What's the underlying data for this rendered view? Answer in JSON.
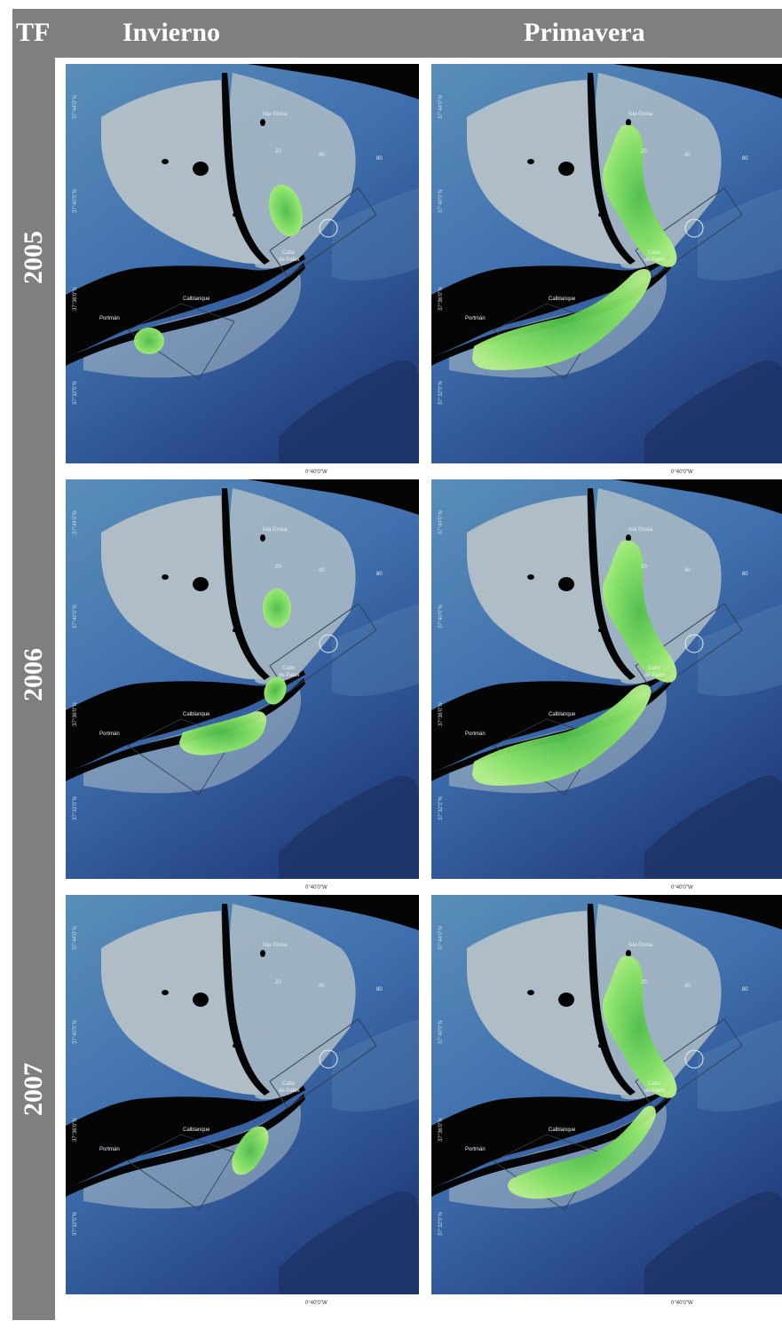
{
  "header": {
    "tf": "TF",
    "col1": "Invierno",
    "col2": "Primavera"
  },
  "years": [
    "2005",
    "2006",
    "2007"
  ],
  "map_labels": {
    "isla": "Isla Grosa",
    "cabo": "Cabo",
    "depalos": "de Palos",
    "calblanque": "Calblanque",
    "portman": "Portmán",
    "d20": "20",
    "d40": "40",
    "d80": "80",
    "lat1": "37°44'0\"N",
    "lat2": "37°40'0\"N",
    "lat3": "37°36'0\"N",
    "lat4": "37°32'0\"N",
    "lon": "0°40'0\"W"
  },
  "colors": {
    "header_bg": "#7f7f7f",
    "land": "#050505",
    "shelf": "#aebdc6",
    "sea": "#3f6fae",
    "deep": "#1c2c5a",
    "seagrass": "#8fe66a"
  },
  "panels": [
    {
      "year": "2005",
      "season": "Invierno",
      "patches": [
        "north-small",
        "portman-small"
      ]
    },
    {
      "year": "2005",
      "season": "Primavera",
      "patches": [
        "north-long",
        "south-band"
      ]
    },
    {
      "year": "2006",
      "season": "Invierno",
      "patches": [
        "north-oval",
        "cabo-small",
        "calblanque-band"
      ]
    },
    {
      "year": "2006",
      "season": "Primavera",
      "patches": [
        "north-long",
        "south-band"
      ]
    },
    {
      "year": "2007",
      "season": "Invierno",
      "patches": [
        "calblanque-blob"
      ]
    },
    {
      "year": "2007",
      "season": "Primavera",
      "patches": [
        "north-long",
        "south-band-short"
      ]
    }
  ]
}
